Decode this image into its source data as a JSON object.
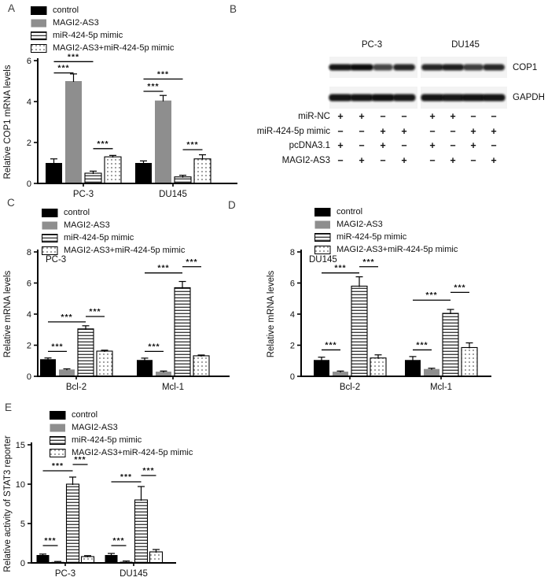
{
  "figure": {
    "background": "#ffffff",
    "text_color": "#1a1a1a"
  },
  "legend": {
    "items": [
      {
        "label": "control",
        "swatch": "black"
      },
      {
        "label": "MAGI2-AS3",
        "swatch": "gray"
      },
      {
        "label": "miR-424-5p mimic",
        "swatch": "hlines"
      },
      {
        "label": "MAGI2-AS3+miR-424-5p mimic",
        "swatch": "dots"
      }
    ],
    "colors": {
      "black": "#000000",
      "gray": "#8e8e8e",
      "pattern_line": "#3d3d3d",
      "dot": "#555555"
    }
  },
  "panels": {
    "A": {
      "letter": "A"
    },
    "B": {
      "letter": "B",
      "cell_lines": [
        "PC-3",
        "DU145"
      ],
      "blot_rows": [
        {
          "label": "COP1",
          "lanes_pc3": [
            0.95,
            1.0,
            0.55,
            0.8
          ],
          "lanes_du145": [
            0.8,
            0.85,
            0.6,
            0.78
          ]
        },
        {
          "label": "GAPDH",
          "lanes_pc3": [
            0.95,
            0.93,
            0.96,
            0.9
          ],
          "lanes_du145": [
            0.93,
            0.9,
            0.95,
            0.92
          ]
        }
      ],
      "condition_rows": [
        {
          "label": "miR-NC",
          "values": [
            "+",
            "+",
            "−",
            "−",
            "+",
            "+",
            "−",
            "−"
          ]
        },
        {
          "label": "miR-424-5p mimic",
          "values": [
            "−",
            "−",
            "+",
            "+",
            "−",
            "−",
            "+",
            "+"
          ]
        },
        {
          "label": "pcDNA3.1",
          "values": [
            "+",
            "−",
            "+",
            "−",
            "+",
            "−",
            "+",
            "−"
          ]
        },
        {
          "label": "MAGI2-AS3",
          "values": [
            "−",
            "+",
            "−",
            "+",
            "−",
            "+",
            "−",
            "+"
          ]
        }
      ]
    },
    "C": {
      "letter": "C"
    },
    "D": {
      "letter": "D"
    },
    "E": {
      "letter": "E"
    }
  },
  "chart_data": [
    {
      "id": "A",
      "type": "bar",
      "ylabel": "Relative COP1 mRNA levels",
      "inplot_label": "",
      "categories": [
        "PC-3",
        "DU145"
      ],
      "ylim": [
        0,
        6
      ],
      "yticks": [
        0,
        2,
        4,
        6
      ],
      "legend_position": "top-left",
      "grid": false,
      "series": [
        {
          "name": "control",
          "values": [
            1.0,
            1.0
          ],
          "errors": [
            0.2,
            0.1
          ]
        },
        {
          "name": "MAGI2-AS3",
          "values": [
            5.0,
            4.05
          ],
          "errors": [
            0.35,
            0.25
          ]
        },
        {
          "name": "miR-424-5p mimic",
          "values": [
            0.5,
            0.32
          ],
          "errors": [
            0.1,
            0.08
          ]
        },
        {
          "name": "MAGI2-AS3+miR-424-5p mimic",
          "values": [
            1.3,
            1.2
          ],
          "errors": [
            0.07,
            0.2
          ]
        }
      ],
      "significance": [
        {
          "cat": 0,
          "from": 0,
          "to": 2,
          "y": 5.95,
          "label": "***"
        },
        {
          "cat": 0,
          "from": 0,
          "to": 1,
          "y": 5.4,
          "label": "***"
        },
        {
          "cat": 0,
          "from": 2,
          "to": 3,
          "y": 1.7,
          "label": "***"
        },
        {
          "cat": 1,
          "from": 0,
          "to": 2,
          "y": 5.1,
          "label": "***"
        },
        {
          "cat": 1,
          "from": 0,
          "to": 1,
          "y": 4.5,
          "label": "***"
        },
        {
          "cat": 1,
          "from": 2,
          "to": 3,
          "y": 1.65,
          "label": "***"
        }
      ]
    },
    {
      "id": "C",
      "type": "bar",
      "ylabel": "Relative mRNA levels",
      "inplot_label": "PC-3",
      "categories": [
        "Bcl-2",
        "Mcl-1"
      ],
      "ylim": [
        0,
        8
      ],
      "yticks": [
        0,
        2,
        4,
        6,
        8
      ],
      "legend_position": "top-left",
      "grid": false,
      "series": [
        {
          "name": "control",
          "values": [
            1.1,
            1.05
          ],
          "errors": [
            0.08,
            0.12
          ]
        },
        {
          "name": "MAGI2-AS3",
          "values": [
            0.44,
            0.3
          ],
          "errors": [
            0.04,
            0.04
          ]
        },
        {
          "name": "miR-424-5p mimic",
          "values": [
            3.05,
            5.7
          ],
          "errors": [
            0.2,
            0.4
          ]
        },
        {
          "name": "MAGI2-AS3+miR-424-5p mimic",
          "values": [
            1.62,
            1.32
          ],
          "errors": [
            0.06,
            0.05
          ]
        }
      ],
      "significance": [
        {
          "cat": 0,
          "from": 0,
          "to": 1,
          "y": 1.6,
          "label": "***"
        },
        {
          "cat": 0,
          "from": 0,
          "to": 2,
          "y": 3.5,
          "label": "***"
        },
        {
          "cat": 0,
          "from": 2,
          "to": 3,
          "y": 3.85,
          "label": "***"
        },
        {
          "cat": 1,
          "from": 0,
          "to": 1,
          "y": 1.6,
          "label": "***"
        },
        {
          "cat": 1,
          "from": 0,
          "to": 2,
          "y": 6.65,
          "label": "***"
        },
        {
          "cat": 1,
          "from": 2,
          "to": 3,
          "y": 7.05,
          "label": "***"
        }
      ]
    },
    {
      "id": "D",
      "type": "bar",
      "ylabel": "Relative mRNA levels",
      "inplot_label": "DU145",
      "categories": [
        "Bcl-2",
        "Mcl-1"
      ],
      "ylim": [
        0,
        8
      ],
      "yticks": [
        0,
        2,
        4,
        6,
        8
      ],
      "legend_position": "top-left",
      "grid": false,
      "series": [
        {
          "name": "control",
          "values": [
            1.05,
            1.05
          ],
          "errors": [
            0.18,
            0.22
          ]
        },
        {
          "name": "MAGI2-AS3",
          "values": [
            0.3,
            0.47
          ],
          "errors": [
            0.04,
            0.05
          ]
        },
        {
          "name": "miR-424-5p mimic",
          "values": [
            5.8,
            4.05
          ],
          "errors": [
            0.6,
            0.25
          ]
        },
        {
          "name": "MAGI2-AS3+miR-424-5p mimic",
          "values": [
            1.18,
            1.85
          ],
          "errors": [
            0.2,
            0.3
          ]
        }
      ],
      "significance": [
        {
          "cat": 0,
          "from": 0,
          "to": 1,
          "y": 1.7,
          "label": "***"
        },
        {
          "cat": 0,
          "from": 0,
          "to": 2,
          "y": 6.65,
          "label": "***"
        },
        {
          "cat": 0,
          "from": 2,
          "to": 3,
          "y": 7.05,
          "label": "***"
        },
        {
          "cat": 1,
          "from": 0,
          "to": 1,
          "y": 1.7,
          "label": "***"
        },
        {
          "cat": 1,
          "from": 0,
          "to": 2,
          "y": 4.9,
          "label": "***"
        },
        {
          "cat": 1,
          "from": 2,
          "to": 3,
          "y": 5.4,
          "label": "***"
        }
      ]
    },
    {
      "id": "E",
      "type": "bar",
      "ylabel": "Relative activity of STAT3 reporter",
      "inplot_label": "",
      "categories": [
        "PC-3",
        "DU145"
      ],
      "ylim": [
        0,
        15
      ],
      "yticks": [
        0,
        5,
        10,
        15
      ],
      "legend_position": "top-left",
      "grid": false,
      "series": [
        {
          "name": "control",
          "values": [
            1.0,
            1.0
          ],
          "errors": [
            0.12,
            0.2
          ]
        },
        {
          "name": "MAGI2-AS3",
          "values": [
            0.15,
            0.2
          ],
          "errors": [
            0.03,
            0.04
          ]
        },
        {
          "name": "miR-424-5p mimic",
          "values": [
            10.0,
            8.0
          ],
          "errors": [
            0.9,
            1.7
          ]
        },
        {
          "name": "MAGI2-AS3+miR-424-5p mimic",
          "values": [
            0.8,
            1.4
          ],
          "errors": [
            0.12,
            0.3
          ]
        }
      ],
      "significance": [
        {
          "cat": 0,
          "from": 0,
          "to": 1,
          "y": 2.2,
          "label": "***"
        },
        {
          "cat": 0,
          "from": 0,
          "to": 2,
          "y": 11.7,
          "label": "***"
        },
        {
          "cat": 0,
          "from": 2,
          "to": 3,
          "y": 12.5,
          "label": "***"
        },
        {
          "cat": 1,
          "from": 0,
          "to": 1,
          "y": 2.2,
          "label": "***"
        },
        {
          "cat": 1,
          "from": 0,
          "to": 2,
          "y": 10.3,
          "label": "***"
        },
        {
          "cat": 1,
          "from": 2,
          "to": 3,
          "y": 11.1,
          "label": "***"
        }
      ]
    }
  ]
}
